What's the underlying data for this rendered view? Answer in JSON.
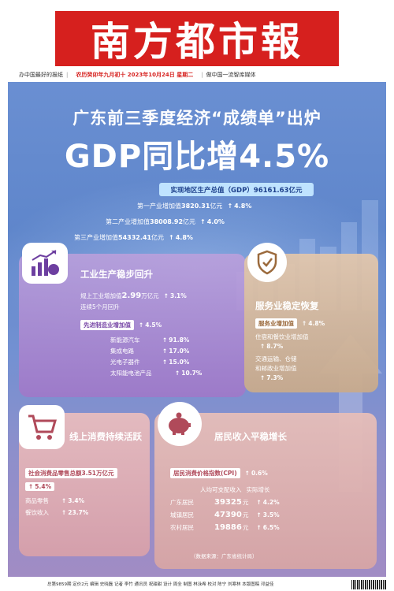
{
  "masthead": {
    "title": "南方都市報"
  },
  "header": {
    "left": "办中国最好的报纸",
    "date": "农历癸卯年九月初十 2023年10月24日 星期二",
    "right": "做中国一流智库媒体"
  },
  "headline": {
    "line1": "广东前三季度经济“成绩单”出炉",
    "line2": "GDP同比增4.5%"
  },
  "gdp": {
    "label": "实现地区生产总值（GDP）96161.63亿元",
    "industries": [
      {
        "prefix": "第一产业增加值",
        "value": "3820.31",
        "unit": "亿元",
        "growth": "4.8%"
      },
      {
        "prefix": "第二产业增加值",
        "value": "38008.92",
        "unit": "亿元",
        "growth": "4.0%"
      },
      {
        "prefix": "第三产业增加值",
        "value": "54332.41",
        "unit": "亿元",
        "growth": "4.8%"
      }
    ]
  },
  "industry": {
    "title": "工业生产稳步回升",
    "output_prefix": "规上工业增加值",
    "output_value": "2.99",
    "output_unit": "万亿元",
    "output_growth": "3.1%",
    "note": "连续5个月回升",
    "advanced_label": "先进制造业增加值",
    "advanced_growth": "4.5%",
    "items": [
      {
        "name": "新能源汽车",
        "growth": "91.8%"
      },
      {
        "name": "集成电路",
        "growth": "17.0%"
      },
      {
        "name": "光电子器件",
        "growth": "15.0%"
      },
      {
        "name": "太阳能电池产品",
        "growth": "10.7%"
      }
    ]
  },
  "services": {
    "title": "服务业稳定恢复",
    "label": "服务业增加值",
    "growth": "4.8%",
    "lines": [
      "住宿和餐饮业增加值",
      "8.7%",
      "交通运输、仓储",
      "和邮政业增加值",
      "7.3%"
    ]
  },
  "consumption": {
    "title": "线上消费持续活跃",
    "total_label": "社会消费品零售总额3.51万亿元",
    "total_growth": "5.4%",
    "items": [
      {
        "name": "商品零售",
        "growth": "3.4%"
      },
      {
        "name": "餐饮收入",
        "growth": "23.7%"
      }
    ]
  },
  "income": {
    "title": "居民收入平稳增长",
    "cpi_label": "居民消费价格指数(CPI)",
    "cpi_value": "0.6%",
    "col1": "人均可支配收入",
    "col2": "实际增长",
    "rows": [
      {
        "name": "广东居民",
        "value": "39325",
        "unit": "元",
        "growth": "4.2%"
      },
      {
        "name": "城镇居民",
        "value": "47390",
        "unit": "元",
        "growth": "3.5%"
      },
      {
        "name": "农村居民",
        "value": "19886",
        "unit": "元",
        "growth": "6.5%"
      }
    ],
    "source": "（数据来源：广东省统计局）"
  },
  "footer": {
    "text": "总第9859期 定价2元 编辑 史晓磊 记者 李竹 通讯员 祝甜甜 设计 周全 制图 林泳希 校对 陈宁 刘寒林 本版图稿 邓益佳"
  }
}
